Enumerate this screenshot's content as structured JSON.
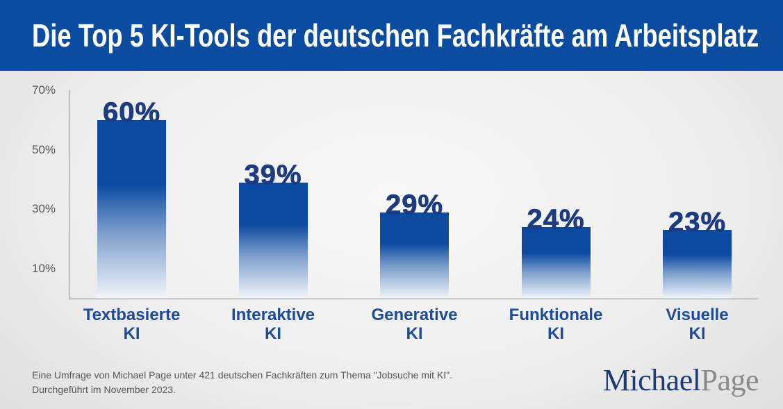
{
  "chart_data": {
    "type": "bar",
    "title": "Die Top 5 KI-Tools der deutschen Fachkräfte am Arbeitsplatz",
    "categories": [
      "Textbasierte KI",
      "Interaktive KI",
      "Generative KI",
      "Funktionale KI",
      "Visuelle KI"
    ],
    "values": [
      60,
      39,
      29,
      24,
      23
    ],
    "data_labels": [
      "60%",
      "39%",
      "29%",
      "24%",
      "23%"
    ],
    "yticks": [
      10,
      30,
      50,
      70
    ],
    "yticklabels": [
      "10%",
      "30%",
      "50%",
      "70%"
    ],
    "ylim": [
      0,
      70
    ],
    "grid": false
  },
  "footnote": [
    "Eine Umfrage von Michael Page unter 421 deutschen Fachkräften zum Thema \"Jobsuche mit KI\".",
    "Durchgeführt im November 2023."
  ],
  "logo": {
    "part1": "Michael",
    "part2": "Page"
  },
  "colors": {
    "banner": "#0b4ca0",
    "title_text": "#ffffff",
    "bar": "#0b4aa0",
    "value_label": "#1c3b80",
    "category_label": "#1f4c9a",
    "axis": "#8d8d8d",
    "logo_michael": "#1d3b78",
    "logo_page": "#8a8a8a"
  }
}
